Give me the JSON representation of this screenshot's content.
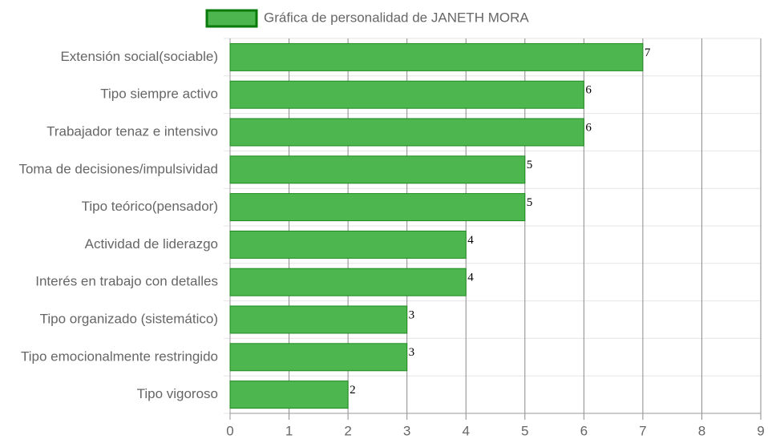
{
  "chart_data": {
    "type": "hbar",
    "categories": [
      "Extensión social(sociable)",
      "Tipo siempre activo",
      "Trabajador tenaz e intensivo",
      "Toma de decisiones/impulsividad",
      "Tipo teórico(pensador)",
      "Actividad de liderazgo",
      "Interés en trabajo con detalles",
      "Tipo organizado (sistemático)",
      "Tipo emocionalmente restringido",
      "Tipo vigoroso"
    ],
    "series": [
      {
        "name": "Gráfica de personalidad de JANETH MORA",
        "color": "#4db64e",
        "border_color": "#1e8a1e",
        "values": [
          7,
          6,
          6,
          5,
          5,
          4,
          4,
          3,
          3,
          2
        ]
      }
    ],
    "xlim": [
      0,
      9
    ],
    "xticks": [
      0,
      1,
      2,
      3,
      4,
      5,
      6,
      7,
      8,
      9
    ],
    "grid": true,
    "legend": "top"
  }
}
